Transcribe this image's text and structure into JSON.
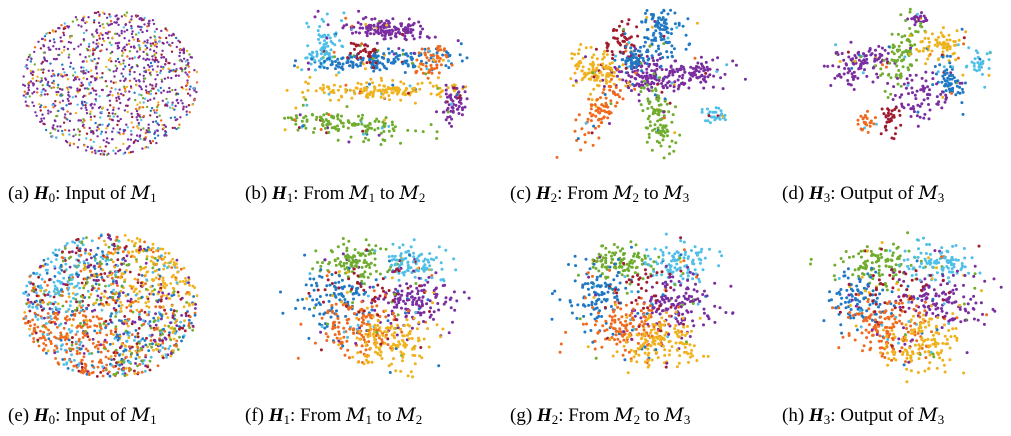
{
  "palette": [
    "#7a2da0",
    "#1f78c4",
    "#ef6a1e",
    "#f0b21d",
    "#70ad2f",
    "#4fbfe8",
    "#a01b2e"
  ],
  "panels": [
    {
      "letter": "(a)",
      "matrix": "H",
      "sub": "0",
      "text": ": Input of ",
      "m1": "M",
      "m1sub": "1",
      "mid": "",
      "m2": "",
      "m2sub": "",
      "shape": "ellipse-sparse"
    },
    {
      "letter": "(b)",
      "matrix": "H",
      "sub": "1",
      "text": ": From ",
      "m1": "M",
      "m1sub": "1",
      "mid": " to ",
      "m2": "M",
      "m2sub": "2",
      "shape": "bands"
    },
    {
      "letter": "(c)",
      "matrix": "H",
      "sub": "2",
      "text": ": From ",
      "m1": "M",
      "m1sub": "2",
      "mid": " to ",
      "m2": "M",
      "m2sub": "3",
      "shape": "star"
    },
    {
      "letter": "(d)",
      "matrix": "H",
      "sub": "3",
      "text": ": Output of ",
      "m1": "M",
      "m1sub": "3",
      "mid": "",
      "m2": "",
      "m2sub": "",
      "shape": "clusters"
    },
    {
      "letter": "(e)",
      "matrix": "H",
      "sub": "0",
      "text": ": Input of ",
      "m1": "M",
      "m1sub": "1",
      "mid": "",
      "m2": "",
      "m2sub": "",
      "shape": "ellipse-dense"
    },
    {
      "letter": "(f)",
      "matrix": "H",
      "sub": "1",
      "text": ": From ",
      "m1": "M",
      "m1sub": "1",
      "mid": " to ",
      "m2": "M",
      "m2sub": "2",
      "shape": "blob"
    },
    {
      "letter": "(g)",
      "matrix": "H",
      "sub": "2",
      "text": ": From ",
      "m1": "M",
      "m1sub": "2",
      "mid": " to ",
      "m2": "M",
      "m2sub": "3",
      "shape": "blob"
    },
    {
      "letter": "(h)",
      "matrix": "H",
      "sub": "3",
      "text": ": Output of ",
      "m1": "M",
      "m1sub": "3",
      "mid": "",
      "m2": "",
      "m2sub": "",
      "shape": "blob"
    }
  ]
}
